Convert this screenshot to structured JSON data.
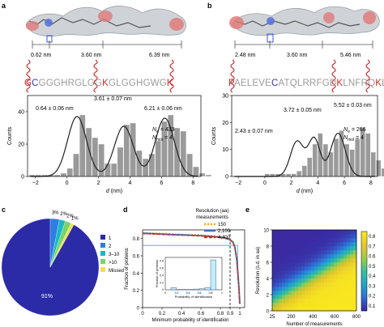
{
  "panels": {
    "a": {
      "label": "a",
      "molecule_colors": [
        "#c9cdd3",
        "#e05555",
        "#3b5bd6"
      ],
      "distances": [
        "0.62 nm",
        "3.60 nm",
        "6.39 nm"
      ],
      "sequence": [
        {
          "c": "G",
          "color": "#cc2a2a"
        },
        {
          "c": "C",
          "color": "#2a39b8"
        },
        {
          "c": "GGGHRGLGG",
          "color": "#9a9a9a"
        },
        {
          "c": "K",
          "color": "#cc2a2a"
        },
        {
          "c": "GLGGHGWG",
          "color": "#9a9a9a"
        },
        {
          "c": "K",
          "color": "#cc2a2a"
        }
      ],
      "annotations": {
        "peak1": "0.64 ± 0.06 nm",
        "peak2": "3.61 ± 0.07 nm",
        "peak3": "6.21 ± 0.06 nm",
        "n_e": "N",
        "n_e_sub": "e",
        "n_e_val": "= 433",
        "n_mol": "N",
        "n_mol_sub": "mol",
        "n_mol_val": "= 4"
      }
    },
    "b": {
      "label": "b",
      "distances": [
        "2.48 nm",
        "3.60 nm",
        "5.46 nm"
      ],
      "sequence": [
        {
          "c": "P",
          "color": "#cc2a2a"
        },
        {
          "c": "AELEVE",
          "color": "#9a9a9a"
        },
        {
          "c": "C",
          "color": "#2a39b8"
        },
        {
          "c": "ATQLRRFGD",
          "color": "#9a9a9a"
        },
        {
          "c": "K",
          "color": "#cc2a2a"
        },
        {
          "c": "LNFRQ",
          "color": "#9a9a9a"
        },
        {
          "c": "K",
          "color": "#cc2a2a"
        },
        {
          "c": "LL",
          "color": "#9a9a9a"
        }
      ],
      "annotations": {
        "peak1": "2.43 ± 0.07 nm",
        "peak2": "3.72 ± 0.05 nm",
        "peak3": "5.52 ± 0.03 nm",
        "n_e": "N",
        "n_e_sub": "e",
        "n_e_val": "= 266",
        "n_mol": "N",
        "n_mol_sub": "mol",
        "n_mol_val": "= 4"
      }
    },
    "c": {
      "label": "c"
    },
    "d": {
      "label": "d"
    },
    "e": {
      "label": "e"
    }
  },
  "chart_data": [
    {
      "id": "a",
      "type": "bar",
      "xlabel": "d (nm)",
      "ylabel": "Counts",
      "xlim": [
        -2.5,
        8.5
      ],
      "ylim": [
        0,
        50
      ],
      "xticks": [
        -2,
        0,
        2,
        4,
        6,
        8
      ],
      "yticks": [
        0,
        20,
        40
      ],
      "bin_width": 0.4,
      "bin_start": -2.4,
      "counts": [
        1,
        1,
        1,
        1,
        1,
        2,
        5,
        14,
        38,
        30,
        24,
        20,
        8,
        8,
        18,
        32,
        33,
        16,
        11,
        14,
        22,
        34,
        38,
        30,
        28,
        14,
        6,
        2,
        1
      ],
      "fit": {
        "means": [
          0.64,
          3.61,
          6.21
        ],
        "sigmas": [
          0.6,
          0.6,
          0.6
        ],
        "amps": [
          37,
          31,
          36
        ]
      }
    },
    {
      "id": "b",
      "type": "bar",
      "xlabel": "d (nm)",
      "ylabel": "Counts",
      "xlim": [
        -2.5,
        8.5
      ],
      "ylim": [
        0,
        30
      ],
      "xticks": [
        -2,
        0,
        2,
        4,
        6,
        8
      ],
      "yticks": [
        0,
        10,
        20,
        30
      ],
      "bin_width": 0.4,
      "bin_start": -1.6,
      "counts": [
        0,
        0,
        0,
        0,
        1,
        1,
        1,
        1,
        1,
        1,
        2,
        4,
        7,
        12,
        16,
        12,
        9,
        14,
        17,
        12,
        10,
        14,
        18,
        16,
        9,
        6,
        3,
        1
      ],
      "fit": {
        "means": [
          2.43,
          3.72,
          5.52
        ],
        "sigmas": [
          0.5,
          0.45,
          0.55
        ],
        "amps": [
          13,
          14,
          16
        ]
      }
    },
    {
      "id": "c",
      "type": "pie",
      "slices": [
        {
          "label": "1",
          "value": 91,
          "color": "#2b2ba8",
          "display": "91%"
        },
        {
          "label": "2",
          "value": 3,
          "color": "#2f7de0",
          "display": "3%"
        },
        {
          "label": "3–10",
          "value": 2,
          "color": "#18b8c7",
          "display": "2%"
        },
        {
          "label": ">10",
          "value": 2,
          "color": "#7ad36a",
          "display": "2%"
        },
        {
          "label": "Missed",
          "value": 1,
          "color": "#f2e14c",
          "display": "1%"
        }
      ]
    },
    {
      "id": "d",
      "type": "line",
      "xlabel": "Minimum probability of identification",
      "ylabel": "Fraction of proteins",
      "xlim": [
        0,
        1.05
      ],
      "ylim": [
        0,
        0.9
      ],
      "xticks": [
        0,
        0.2,
        0.4,
        0.6,
        0.8,
        0.9,
        1
      ],
      "yticks": [
        0,
        0.2,
        0.4,
        0.6,
        0.8
      ],
      "legend_title": "Resolution (aa)",
      "legend_subtitle": "measurements",
      "series": [
        {
          "name": "150",
          "color": "#f3a81c",
          "dash": "2,2"
        },
        {
          "name": "2,100",
          "color": "#2f6fc8",
          "dash": ""
        },
        {
          "name": "4,400",
          "color": "#cc2a2a",
          "dash": "4,2"
        }
      ],
      "curve": {
        "x": [
          0,
          0.1,
          0.2,
          0.3,
          0.4,
          0.5,
          0.6,
          0.7,
          0.8,
          0.85,
          0.9,
          0.93,
          0.95,
          0.97,
          0.99,
          1.0
        ],
        "y": [
          0.865,
          0.86,
          0.855,
          0.85,
          0.846,
          0.842,
          0.837,
          0.83,
          0.82,
          0.81,
          0.79,
          0.76,
          0.7,
          0.55,
          0.25,
          0.05
        ]
      },
      "threshold_x": 0.9,
      "inset": {
        "xlabel": "Probability of identification",
        "ylabel": "Fraction of proteins",
        "xticks": [
          0,
          0.2,
          0.4,
          0.6,
          0.8,
          1
        ],
        "yticks": [
          0,
          0.2,
          0.4,
          0.6,
          0.8
        ],
        "ylim": [
          0,
          0.9
        ],
        "bins": [
          0.2,
          0.3,
          0.4,
          0.5,
          0.6,
          0.7,
          0.8,
          0.9
        ],
        "values": [
          0.06,
          0.01,
          0.01,
          0.01,
          0.02,
          0.03,
          0.06,
          0.83
        ]
      }
    },
    {
      "id": "e",
      "type": "heatmap",
      "xlabel": "Number of measurements",
      "ylabel": "Resolution (s.d. in aa)",
      "xticks": [
        25,
        200,
        400,
        600,
        800
      ],
      "yticks": [
        0,
        2,
        4,
        6,
        8,
        10
      ],
      "xlim": [
        25,
        800
      ],
      "ylim": [
        0,
        10
      ],
      "colorbar_ticks": [
        0.1,
        0.2,
        0.3,
        0.4,
        0.5,
        0.6,
        0.7,
        0.8
      ],
      "colorscale": [
        "#3b2aa2",
        "#2f6fd8",
        "#1fa6c9",
        "#35c19b",
        "#9bcc45",
        "#e6c52c",
        "#f8e620"
      ]
    }
  ]
}
